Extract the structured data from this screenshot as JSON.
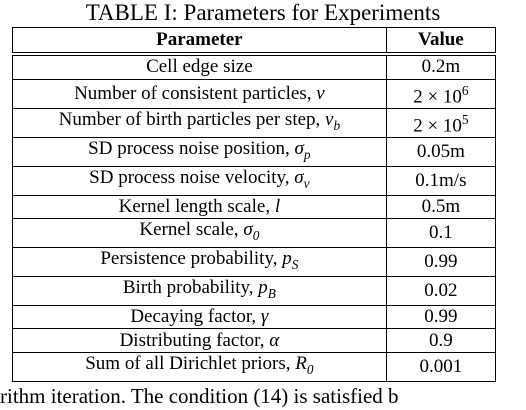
{
  "caption": "TABLE I: Parameters for Experiments",
  "table": {
    "headers": [
      "Parameter",
      "Value"
    ],
    "rows": [
      {
        "parameter": "Cell edge size",
        "value": "0.2m"
      },
      {
        "parameter": "Number of consistent particles, ν",
        "value": "2 × 10^6"
      },
      {
        "parameter": "Number of birth particles per step, ν_b",
        "value": "2 × 10^5"
      },
      {
        "parameter": "SD process noise position, σ_p",
        "value": "0.05m"
      },
      {
        "parameter": "SD process noise velocity, σ_v",
        "value": "0.1m/s"
      },
      {
        "parameter": "Kernel length scale, l",
        "value": "0.5m"
      },
      {
        "parameter": "Kernel scale, σ_0",
        "value": "0.1"
      },
      {
        "parameter": "Persistence probability, p_S",
        "value": "0.99"
      },
      {
        "parameter": "Birth probability, p_B",
        "value": "0.02"
      },
      {
        "parameter": "Decaying factor, γ",
        "value": "0.99"
      },
      {
        "parameter": "Distributing factor, α",
        "value": "0.9"
      },
      {
        "parameter": "Sum of all Dirichlet priors, R_0",
        "value": "0.001"
      }
    ]
  },
  "bottom_text": "rithm iteration. The condition (14) is satisfied b"
}
